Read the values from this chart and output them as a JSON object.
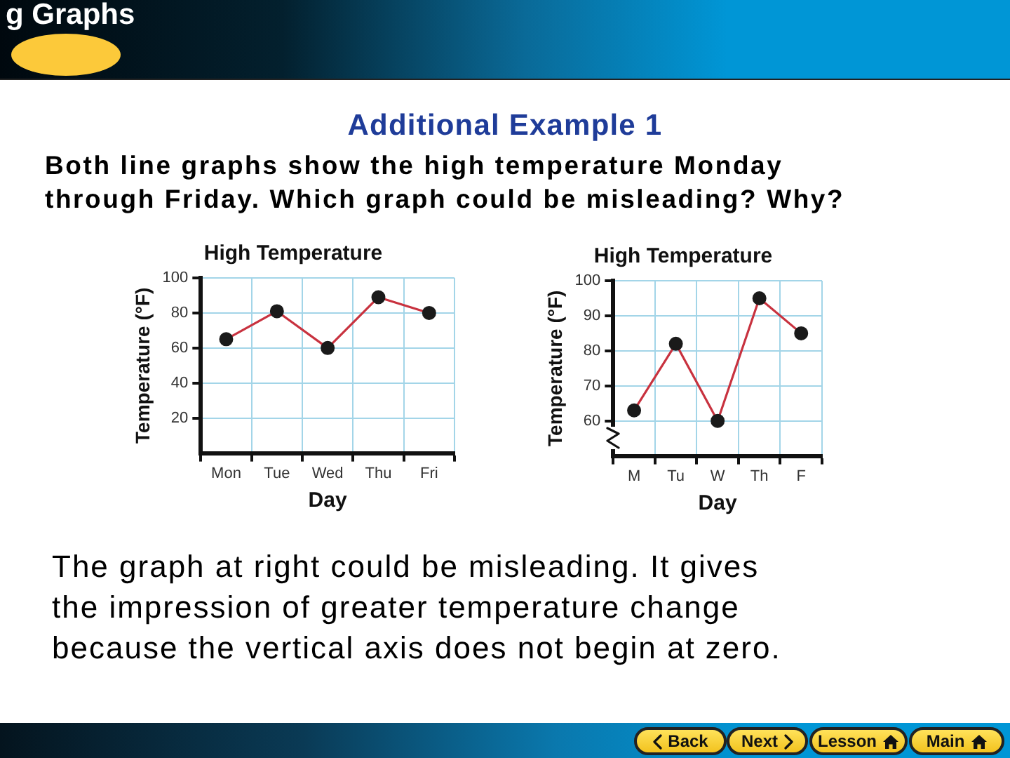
{
  "chart_data": [
    {
      "type": "other",
      "title": "g Graphs",
      "subtitle": "Additional Example 1",
      "annotations": [
        "Both line graphs show the high temperature Monday\nthrough Friday. Which graph could be misleading? Why?"
      ]
    },
    {
      "type": "line",
      "title": "High Temperature",
      "xlabel": "Day",
      "ylabel": "Temperature (°F)",
      "categories": [
        "Mon",
        "Tue",
        "Wed",
        "Thu",
        "Fri"
      ],
      "series": [
        {
          "color": "#c8323f",
          "colors": [
            "#1a1a1a",
            "#1a1a1a",
            "#1a1a1a",
            "#1a1a1a",
            "#1a1a1a"
          ],
          "values": [
            65,
            81,
            60,
            89,
            80
          ]
        }
      ],
      "ylim": [
        0,
        100
      ],
      "yticks": [
        20,
        40,
        60,
        80,
        100
      ],
      "grid": true,
      "marker": "circle"
    },
    {
      "type": "line",
      "title": "High Temperature",
      "xlabel": "Day",
      "ylabel": "Temperature (°F)",
      "categories": [
        "M",
        "Tu",
        "W",
        "Th",
        "F"
      ],
      "series": [
        {
          "color": "#c8323f",
          "colors": [
            "#1a1a1a",
            "#1a1a1a",
            "#1a1a1a",
            "#1a1a1a",
            "#1a1a1a"
          ],
          "values": [
            63,
            82,
            60,
            95,
            85
          ]
        }
      ],
      "ylim": [
        50,
        100
      ],
      "yticks": [
        60,
        70,
        80,
        90,
        100
      ],
      "grid": true,
      "marker": "circle"
    },
    {
      "type": "other",
      "annotations": [
        "The graph at right could be misleading. It gives\nthe impression of greater temperature change\nbecause the vertical axis does not begin at zero.",
        "Back",
        "Next",
        "Lesson",
        "Main"
      ]
    }
  ]
}
